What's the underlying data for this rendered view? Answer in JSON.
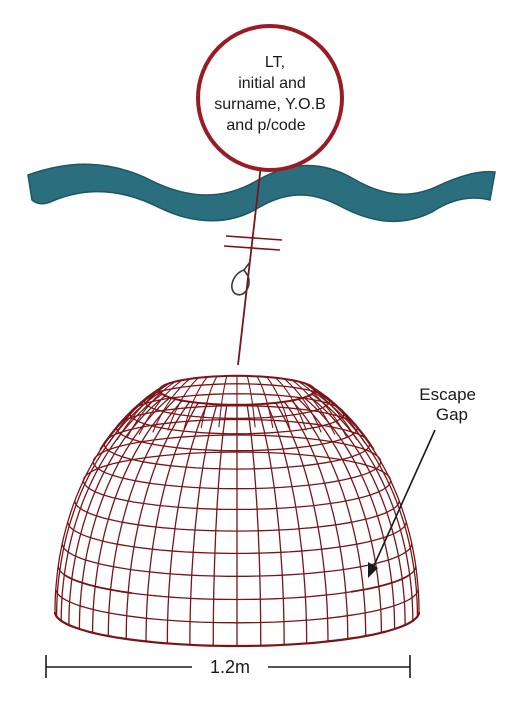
{
  "float_label": {
    "lines": [
      "LT,",
      "initial and",
      "surname, Y.O.B",
      "and p/code"
    ]
  },
  "escape_gap": {
    "lines": [
      "Escape",
      "Gap"
    ]
  },
  "dimension": {
    "label": "1.2m"
  },
  "colors": {
    "water": "#2b6f7e",
    "water_edge": "#1c5563",
    "net": "#7a1418",
    "float_ring": "#9a1b24",
    "text": "#1a1a1a"
  }
}
